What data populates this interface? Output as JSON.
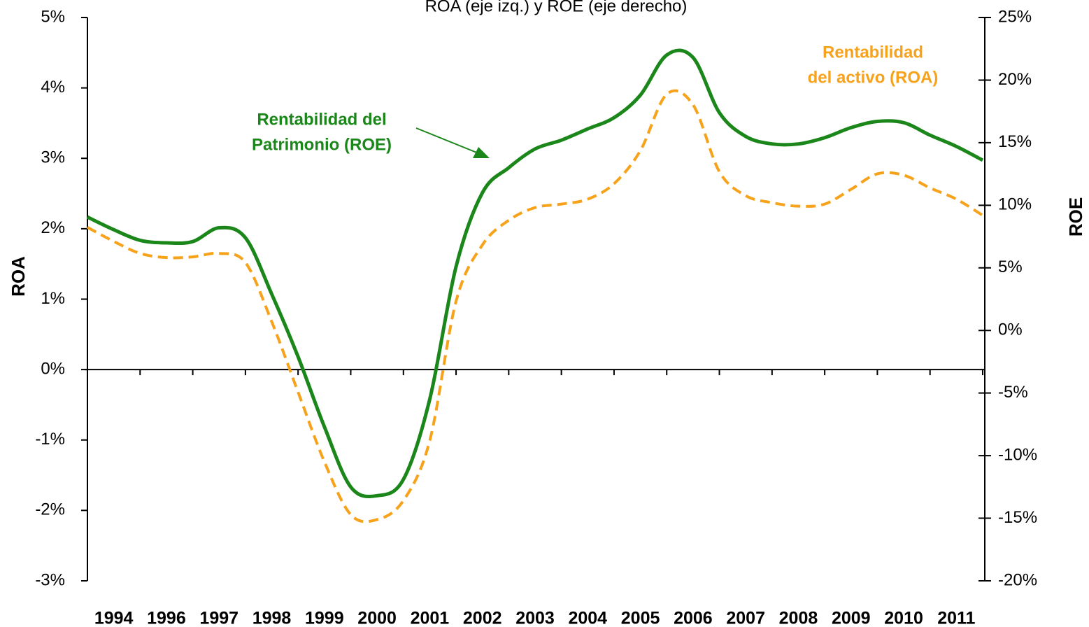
{
  "chart_data": {
    "type": "line",
    "title": "ROA (eje izq.) y ROE (eje derecho)",
    "categories": [
      null,
      "1994",
      null,
      "1996",
      null,
      "1997",
      null,
      "1998",
      null,
      "1999",
      null,
      "2000",
      null,
      "2001",
      null,
      "2002",
      null,
      "2003",
      null,
      "2004",
      null,
      "2005",
      null,
      "2006",
      null,
      "2007",
      null,
      "2008",
      null,
      "2009",
      null,
      "2010",
      null,
      "2011",
      null
    ],
    "series": [
      {
        "name": "ROE",
        "color": "#1b871b",
        "axis": "y2",
        "values": [
          9.06,
          8.05,
          7.2,
          7.0,
          7.1,
          8.2,
          7.4,
          2.9,
          -2.1,
          -7.7,
          -12.5,
          -13.2,
          -11.9,
          -5.5,
          5.1,
          11.0,
          13.0,
          14.5,
          15.2,
          16.1,
          17.0,
          18.8,
          22.0,
          21.8,
          17.4,
          15.5,
          14.9,
          14.9,
          15.4,
          16.2,
          16.7,
          16.6,
          15.6,
          14.7,
          13.6
        ]
      },
      {
        "name": "ROA",
        "color": "#f7a21b",
        "axis": "y",
        "dashed": true,
        "values": [
          2.02,
          1.82,
          1.65,
          1.59,
          1.6,
          1.65,
          1.52,
          0.68,
          -0.32,
          -1.31,
          -2.06,
          -2.13,
          -1.86,
          -1.01,
          0.97,
          1.77,
          2.12,
          2.3,
          2.35,
          2.42,
          2.64,
          3.11,
          3.91,
          3.76,
          2.81,
          2.47,
          2.37,
          2.32,
          2.35,
          2.56,
          2.78,
          2.76,
          2.58,
          2.42,
          2.19
        ]
      }
    ],
    "annotations": [
      "Rentabilidad del",
      "Patrimonio (ROE)",
      "Rentabilidad",
      "del activo (ROA)"
    ],
    "ylim": [
      -3,
      5
    ],
    "yticks": [
      {
        "value": -3,
        "label": "-3%"
      },
      {
        "value": -2,
        "label": "-2%"
      },
      {
        "value": -1,
        "label": "-1%"
      },
      {
        "value": 0,
        "label": "0%"
      },
      {
        "value": 1,
        "label": "1%"
      },
      {
        "value": 2,
        "label": "2%"
      },
      {
        "value": 3,
        "label": "3%"
      },
      {
        "value": 4,
        "label": "4%"
      },
      {
        "value": 5,
        "label": "5%"
      }
    ],
    "y2lim": [
      -20,
      25
    ],
    "y2ticks": [
      {
        "value": -20,
        "label": "-20%"
      },
      {
        "value": -15,
        "label": "-15%"
      },
      {
        "value": -10,
        "label": "-10%"
      },
      {
        "value": -5,
        "label": "-5%"
      },
      {
        "value": 0,
        "label": "0%"
      },
      {
        "value": 5,
        "label": "5%"
      },
      {
        "value": 10,
        "label": "10%"
      },
      {
        "value": 15,
        "label": "15%"
      },
      {
        "value": 20,
        "label": "20%"
      },
      {
        "value": 25,
        "label": "25%"
      }
    ],
    "grid": false
  }
}
